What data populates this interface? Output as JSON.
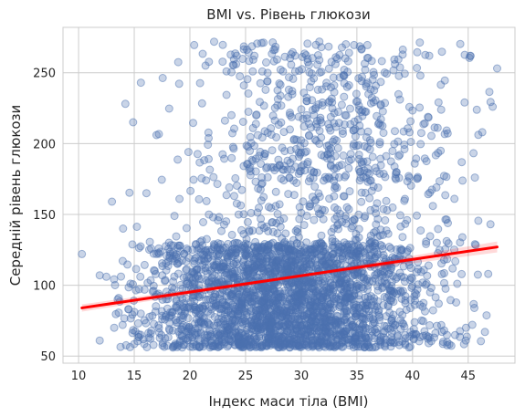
{
  "chart_data": {
    "type": "scatter",
    "title": "BMI vs. Рівень глюкози",
    "xlabel": "Індекс маси тіла (BMI)",
    "ylabel": "Середній рівень глюкози",
    "xlim": [
      8.6,
      49.2
    ],
    "ylim": [
      45,
      282
    ],
    "x_ticks": [
      10,
      15,
      20,
      25,
      30,
      35,
      40,
      45
    ],
    "y_ticks": [
      50,
      100,
      150,
      200,
      250
    ],
    "grid": true,
    "point_color": "#4c72b0",
    "trend_color": "#ff0000",
    "trend_line": {
      "x": [
        10.3,
        47.6
      ],
      "y": [
        84,
        127
      ]
    },
    "clusters": [
      {
        "x_mean": 28.5,
        "x_sd": 6.5,
        "y_min": 56,
        "y_max": 130,
        "count": 2600,
        "x_min": 13,
        "x_max": 47.5
      },
      {
        "x_mean": 31,
        "x_sd": 6.5,
        "y_min": 130,
        "y_max": 175,
        "count": 220,
        "x_min": 14,
        "x_max": 47.5
      },
      {
        "x_mean": 32,
        "x_sd": 6,
        "y_min": 175,
        "y_max": 272,
        "count": 520,
        "x_min": 16,
        "x_max": 47.5
      }
    ],
    "points": [
      {
        "x": 10.3,
        "y": 122
      },
      {
        "x": 11.9,
        "y": 61
      },
      {
        "x": 11.9,
        "y": 107
      },
      {
        "x": 12.5,
        "y": 106
      },
      {
        "x": 13.0,
        "y": 159
      },
      {
        "x": 13.2,
        "y": 70
      },
      {
        "x": 13.6,
        "y": 91
      },
      {
        "x": 14.2,
        "y": 228
      },
      {
        "x": 14.9,
        "y": 215
      },
      {
        "x": 15.6,
        "y": 243
      },
      {
        "x": 16.1,
        "y": 165
      },
      {
        "x": 16.3,
        "y": 63
      },
      {
        "x": 14.0,
        "y": 140
      },
      {
        "x": 14.5,
        "y": 83
      },
      {
        "x": 17.0,
        "y": 206
      },
      {
        "x": 47.6,
        "y": 253
      },
      {
        "x": 47.2,
        "y": 226
      },
      {
        "x": 46.8,
        "y": 108
      },
      {
        "x": 47.0,
        "y": 143
      },
      {
        "x": 41.5,
        "y": 262
      },
      {
        "x": 45.2,
        "y": 262
      },
      {
        "x": 34.3,
        "y": 264
      },
      {
        "x": 31.8,
        "y": 268
      },
      {
        "x": 29.1,
        "y": 263
      },
      {
        "x": 24.2,
        "y": 262
      },
      {
        "x": 21.4,
        "y": 255
      },
      {
        "x": 40.7,
        "y": 248
      },
      {
        "x": 17.2,
        "y": 126
      },
      {
        "x": 46.5,
        "y": 67
      },
      {
        "x": 44.8,
        "y": 70
      }
    ]
  }
}
